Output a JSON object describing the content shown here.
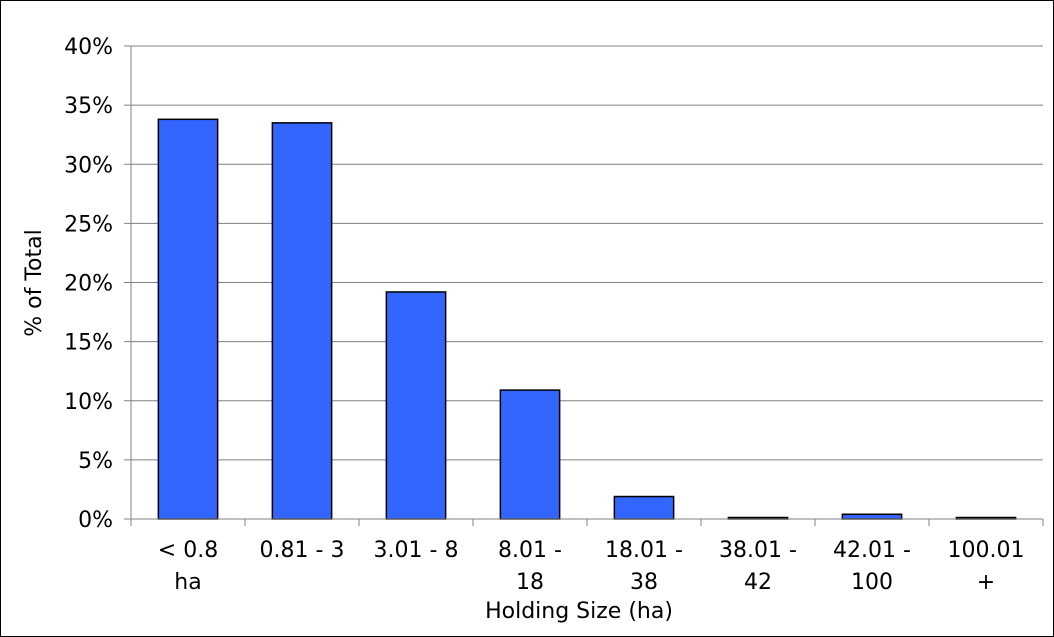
{
  "chart_data": {
    "type": "bar",
    "title": "",
    "xlabel": "Holding Size (ha)",
    "ylabel": "% of Total",
    "categories": [
      [
        "< 0.8",
        "ha"
      ],
      [
        "0.81 - 3"
      ],
      [
        "3.01 - 8"
      ],
      [
        "8.01 -",
        "18"
      ],
      [
        "18.01 -",
        "38"
      ],
      [
        "38.01 -",
        "42"
      ],
      [
        "42.01 -",
        "100"
      ],
      [
        "100.01",
        "+"
      ]
    ],
    "values": [
      33.8,
      33.5,
      19.2,
      10.9,
      1.9,
      0.1,
      0.4,
      0.1
    ],
    "ylim": [
      0,
      40
    ],
    "ytick_step": 5,
    "ytick_format": "percent",
    "grid": true,
    "legend": false,
    "colors": {
      "bar": "#3366FF",
      "bar_border": "#000000",
      "grid": "#808080",
      "axis": "#808080"
    }
  }
}
